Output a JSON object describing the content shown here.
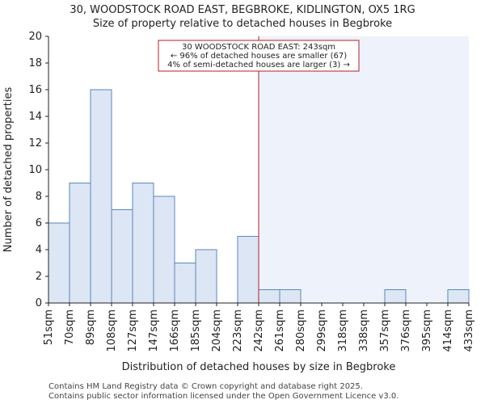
{
  "header": {
    "title_line1": "30, WOODSTOCK ROAD EAST, BEGBROKE, KIDLINGTON, OX5 1RG",
    "title_line2": "Size of property relative to detached houses in Begbroke"
  },
  "footer": {
    "line1": "Contains HM Land Registry data © Crown copyright and database right 2025.",
    "line2": "Contains public sector information licensed under the Open Government Licence v3.0."
  },
  "chart_data": {
    "type": "bar",
    "title": "Size of property relative to detached houses in Begbroke",
    "xlabel": "Distribution of detached houses by size in Begbroke",
    "ylabel": "Number of detached properties",
    "ylim": [
      0,
      20
    ],
    "yticks": [
      0,
      2,
      4,
      6,
      8,
      10,
      12,
      14,
      16,
      18,
      20
    ],
    "bin_edges": [
      "51sqm",
      "70sqm",
      "89sqm",
      "108sqm",
      "127sqm",
      "147sqm",
      "166sqm",
      "185sqm",
      "204sqm",
      "223sqm",
      "242sqm",
      "261sqm",
      "280sqm",
      "299sqm",
      "318sqm",
      "338sqm",
      "357sqm",
      "376sqm",
      "395sqm",
      "414sqm",
      "433sqm"
    ],
    "values": [
      6,
      9,
      16,
      7,
      9,
      8,
      3,
      4,
      0,
      5,
      1,
      1,
      0,
      0,
      0,
      0,
      1,
      0,
      0,
      1
    ],
    "marker": {
      "value_sqm": 243,
      "edge_index": 10,
      "label_line1": "30 WOODSTOCK ROAD EAST: 243sqm",
      "label_line2": "← 96% of detached houses are smaller (67)",
      "label_line3": "4% of semi-detached houses are larger (3) →"
    },
    "colors": {
      "bar_fill": "#dce6f4",
      "bar_stroke": "#5b87bb",
      "highlight_bg": "#eef2fb",
      "marker": "#b22222",
      "axis": "#222222"
    }
  }
}
